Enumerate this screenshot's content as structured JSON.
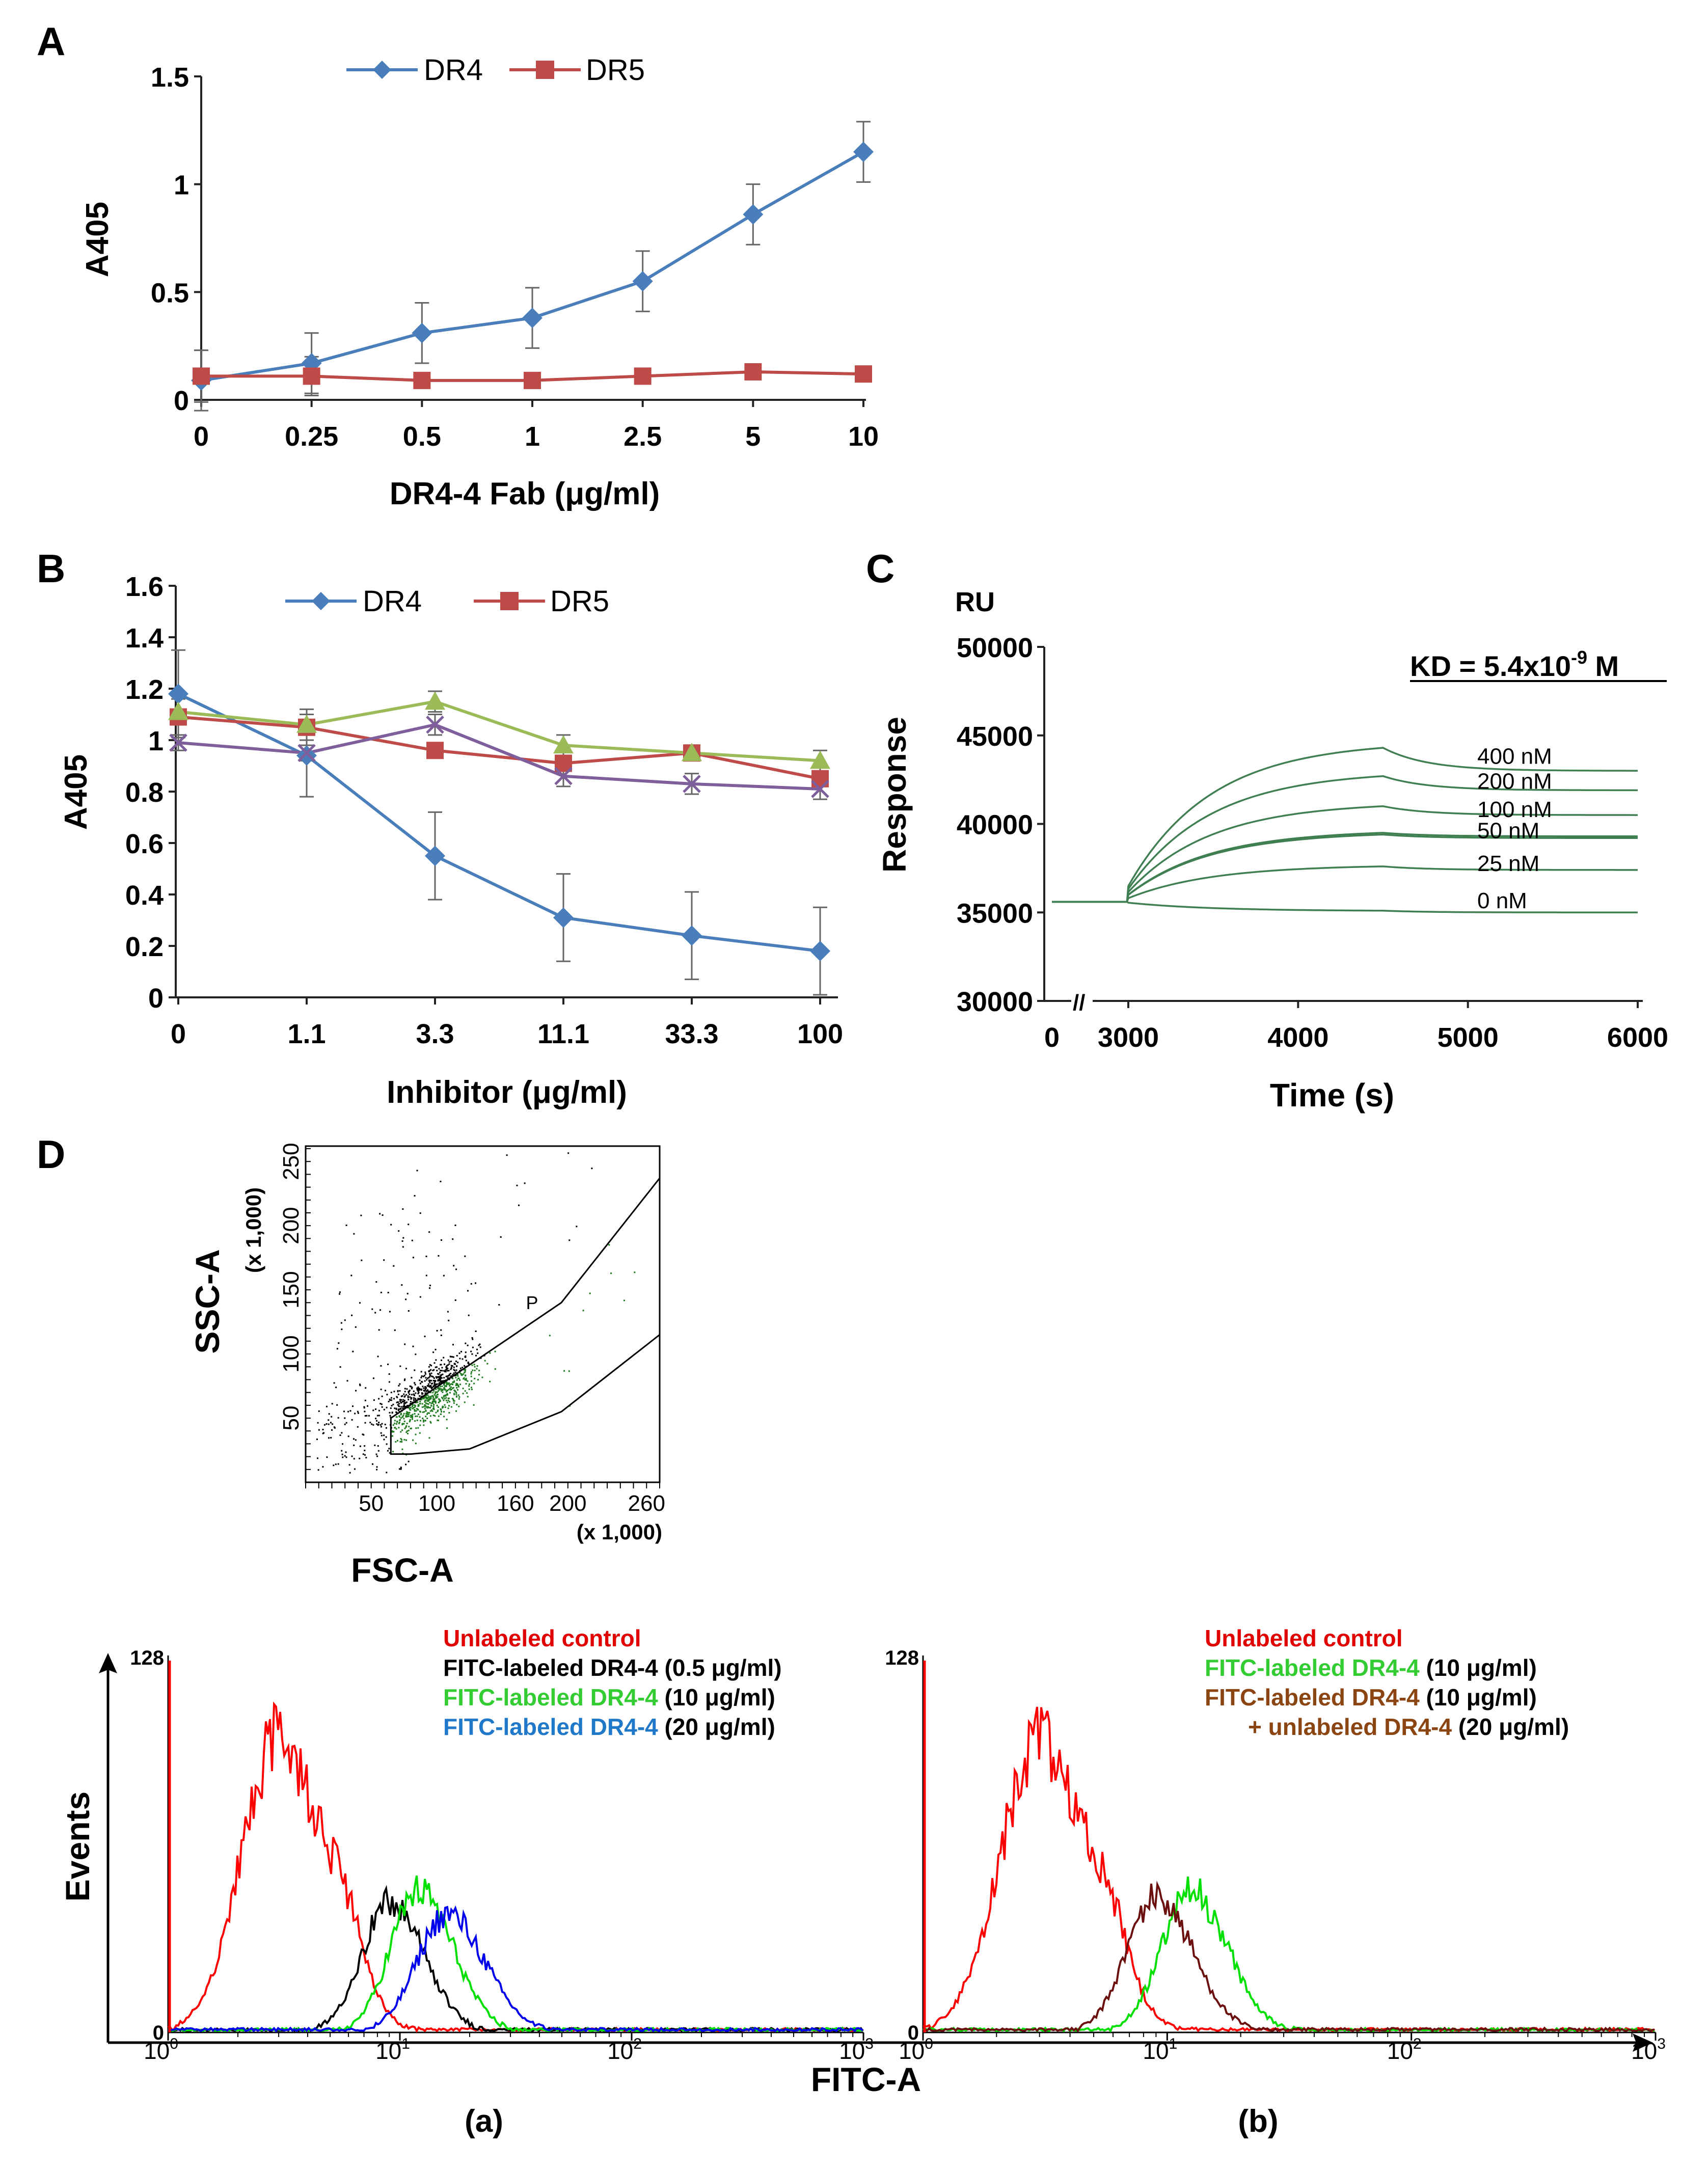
{
  "figure": {
    "panel_labels": {
      "A": "A",
      "B": "B",
      "C": "C",
      "D": "D"
    },
    "sub_labels": {
      "a": "(a)",
      "b": "(b)"
    }
  },
  "chart_data": [
    {
      "id": "A",
      "type": "line",
      "xlabel": "DR4-4 Fab (μg/ml)",
      "ylabel": "A405",
      "categories": [
        "0",
        "0.25",
        "0.5",
        "1",
        "2.5",
        "5",
        "10"
      ],
      "ylim": [
        0,
        1.5
      ],
      "yticks": [
        0,
        0.5,
        1,
        1.5
      ],
      "ytick_labels": [
        "0",
        "0.5",
        "1",
        "1.5"
      ],
      "legend_position": "top",
      "series": [
        {
          "name": "DR4",
          "color": "#4a7ebb",
          "marker": "diamond",
          "values": [
            0.09,
            0.17,
            0.31,
            0.38,
            0.55,
            0.86,
            1.15
          ],
          "errors": [
            0.14,
            0.14,
            0.14,
            0.14,
            0.14,
            0.14,
            0.14
          ]
        },
        {
          "name": "DR5",
          "color": "#be4b48",
          "marker": "square",
          "values": [
            0.11,
            0.11,
            0.09,
            0.09,
            0.11,
            0.13,
            0.12
          ],
          "errors": [
            0.12,
            0.09,
            0,
            0,
            0,
            0,
            0
          ]
        }
      ]
    },
    {
      "id": "B",
      "type": "line",
      "xlabel": "Inhibitor (μg/ml)",
      "ylabel": "A405",
      "categories": [
        "0",
        "1.1",
        "3.3",
        "11.1",
        "33.3",
        "100"
      ],
      "ylim": [
        0,
        1.6
      ],
      "yticks": [
        0,
        0.2,
        0.4,
        0.6,
        0.8,
        1,
        1.2,
        1.4,
        1.6
      ],
      "ytick_labels": [
        "0",
        "0.2",
        "0.4",
        "0.6",
        "0.8",
        "1",
        "1.2",
        "1.4",
        "1.6"
      ],
      "legend_position": "top",
      "series": [
        {
          "name": "DR4",
          "color": "#4a7ebb",
          "marker": "diamond",
          "values": [
            1.18,
            0.94,
            0.55,
            0.31,
            0.24,
            0.18
          ],
          "errors": [
            0.17,
            0.16,
            0.17,
            0.17,
            0.17,
            0.17
          ]
        },
        {
          "name": "DR5",
          "color": "#be4b48",
          "marker": "square",
          "values": [
            1.09,
            1.05,
            0.96,
            0.91,
            0.95,
            0.85
          ],
          "errors": [
            0,
            0,
            0,
            0,
            0,
            0
          ]
        },
        {
          "name": "",
          "color": "#9bbb59",
          "marker": "triangle",
          "values": [
            1.11,
            1.06,
            1.15,
            0.98,
            0.95,
            0.92
          ],
          "errors": [
            0.05,
            0.06,
            0.04,
            0.04,
            0,
            0.04
          ]
        },
        {
          "name": "",
          "color": "#7f5f9b",
          "marker": "xcross",
          "values": [
            0.99,
            0.95,
            1.06,
            0.86,
            0.83,
            0.81
          ],
          "errors": [
            0.03,
            0.03,
            0.04,
            0.04,
            0.04,
            0.04
          ]
        }
      ]
    },
    {
      "id": "C",
      "type": "line",
      "xlabel": "Time (s)",
      "ylabel": "Response",
      "unit_label": "RU",
      "annotation": "KD = 5.4x10",
      "annotation_exp": "-9",
      "annotation_tail": " M",
      "xticks": [
        3000,
        4000,
        5000,
        6000
      ],
      "xtick_labels": [
        "3000",
        "4000",
        "5000",
        "6000"
      ],
      "x_zero_label": "0",
      "axis_break": "//",
      "ylim": [
        30000,
        50000
      ],
      "yticks": [
        30000,
        35000,
        40000,
        45000,
        50000
      ],
      "ytick_labels": [
        "30000",
        "35000",
        "40000",
        "45000",
        "50000"
      ],
      "color": "#3f7f52",
      "injection_start": 2950,
      "injection_end": 4500,
      "end_time": 6000,
      "baseline": 35600,
      "series": [
        {
          "name": "400 nM",
          "peak": 44300,
          "end": 43000
        },
        {
          "name": "200 nM",
          "peak": 42700,
          "end": 41900
        },
        {
          "name": "100 nM",
          "peak": 41000,
          "end": 40500
        },
        {
          "name": "50 nM",
          "peak": 39500,
          "end": 39300
        },
        {
          "name": "50 nM duplicate",
          "peak": 39400,
          "end": 39200
        },
        {
          "name": "25 nM",
          "peak": 37600,
          "end": 37400
        },
        {
          "name": "0 nM",
          "peak": 35100,
          "end": 35000
        }
      ],
      "curve_labels": [
        "400 nM",
        "200 nM",
        "100 nM",
        "50 nM",
        "25 nM",
        "0 nM"
      ],
      "curve_label_values": [
        43850,
        42450,
        40850,
        39650,
        37800,
        35700
      ]
    },
    {
      "id": "D-scatter",
      "type": "scatter",
      "xlabel": "FSC-A",
      "ylabel": "SSC-A",
      "x_multiplier": "(x 1,000)",
      "y_multiplier": "(x 1,000)",
      "xlim": [
        0,
        270
      ],
      "ylim": [
        0,
        262
      ],
      "xticks": [
        50,
        100,
        160,
        200,
        260
      ],
      "xtick_labels": [
        "50",
        "100",
        "160",
        "200",
        "260"
      ],
      "yticks": [
        50,
        100,
        150,
        200,
        250
      ],
      "ytick_labels": [
        "50",
        "100",
        "150",
        "200",
        "250"
      ],
      "gate_label": "P",
      "gate_polygon": [
        [
          65,
          22
        ],
        [
          65,
          50
        ],
        [
          195,
          140
        ],
        [
          270,
          237
        ],
        [
          270,
          115
        ],
        [
          195,
          55
        ],
        [
          125,
          26
        ],
        [
          80,
          22
        ]
      ],
      "population_colors": {
        "inside_gate": "#1f7a1f",
        "outside_gate": "#000000"
      }
    },
    {
      "id": "D-a",
      "type": "histogram",
      "xlabel": "FITC-A",
      "ylabel": "Events",
      "x_scale": "log",
      "xlim": [
        1,
        1000
      ],
      "xtick_labels": [
        "10",
        "10",
        "10",
        "10"
      ],
      "xtick_exponents": [
        "0",
        "1",
        "2",
        "3"
      ],
      "ylim": [
        0,
        128
      ],
      "ytick_labels": [
        "0",
        "128"
      ],
      "series": [
        {
          "name": "Unlabeled control",
          "conc": "",
          "color": "#ff0000",
          "label_color": "#e00000",
          "peak_x": 3,
          "peak_y": 100,
          "width": 0.16
        },
        {
          "name": "FITC-labeled DR4-4",
          "conc": "(0.5 μg/ml)",
          "color": "#000000",
          "label_color": "#000000",
          "peak_x": 9,
          "peak_y": 44,
          "width": 0.12
        },
        {
          "name": "FITC-labeled DR4-4",
          "conc": "(10 μg/ml)",
          "color": "#00e000",
          "label_color": "#33cc33",
          "peak_x": 12,
          "peak_y": 48,
          "width": 0.12
        },
        {
          "name": "FITC-labeled DR4-4",
          "conc": "(20 μg/ml)",
          "color": "#0000ee",
          "label_color": "#1f78c8",
          "peak_x": 16,
          "peak_y": 40,
          "width": 0.13
        }
      ]
    },
    {
      "id": "D-b",
      "type": "histogram",
      "xlabel": "FITC-A",
      "ylabel": "Events",
      "x_scale": "log",
      "xlim": [
        1,
        1000
      ],
      "xtick_labels": [
        "10",
        "10",
        "10",
        "10"
      ],
      "xtick_exponents": [
        "0",
        "1",
        "2",
        "3"
      ],
      "ylim": [
        0,
        128
      ],
      "ytick_labels": [
        "0",
        "128"
      ],
      "series": [
        {
          "name": "Unlabeled control",
          "conc": "",
          "color": "#ff0000",
          "label_color": "#e00000",
          "peak_x": 3,
          "peak_y": 100,
          "width": 0.16
        },
        {
          "name": "FITC-labeled DR4-4",
          "conc": "(10 μg/ml)",
          "color": "#00e000",
          "label_color": "#33cc33",
          "peak_x": 12.5,
          "peak_y": 48,
          "width": 0.12
        },
        {
          "name": "FITC-labeled DR4-4",
          "conc": "(10 μg/ml)",
          "color": "#6b0f0f",
          "label_color": "#8b4513",
          "peak_x": 9,
          "peak_y": 46,
          "width": 0.12
        }
      ],
      "extra_legend": {
        "prefix": "+ ",
        "name": "unlabeled DR4-4",
        "conc": "(20 μg/ml)",
        "color": "#8b4513"
      }
    }
  ]
}
